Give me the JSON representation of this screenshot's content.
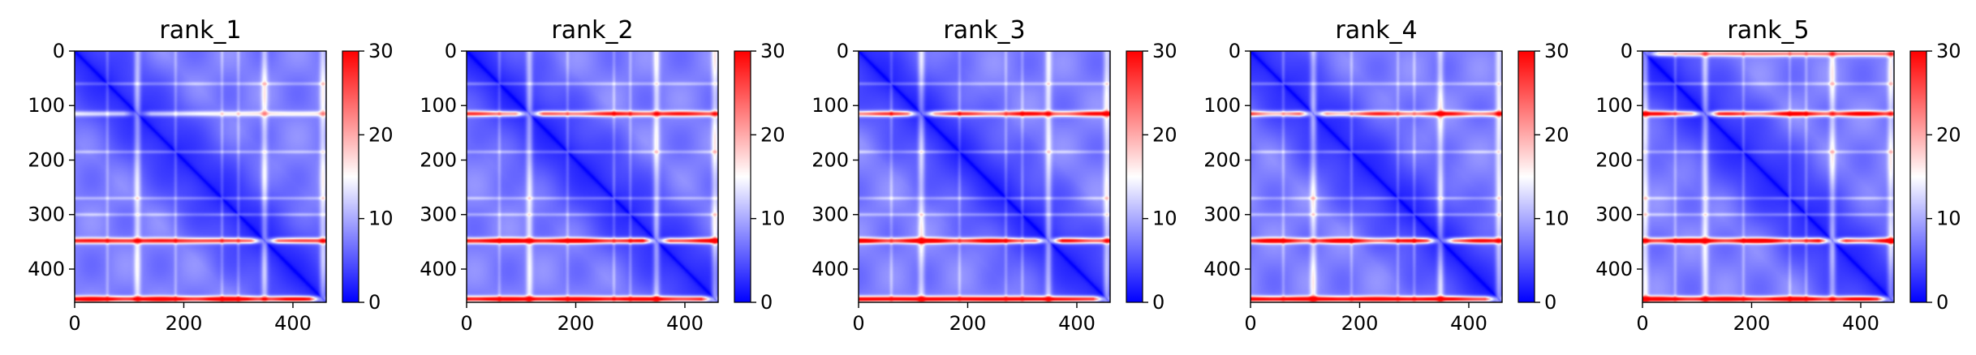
{
  "chart_data": [
    {
      "type": "heatmap",
      "title": "rank_1",
      "xlim": [
        0,
        461
      ],
      "ylim": [
        461,
        0
      ],
      "xticks": [
        "0",
        "200",
        "400"
      ],
      "yticks": [
        "0",
        "100",
        "200",
        "300",
        "400"
      ],
      "colorbar": {
        "colormap": "bwr",
        "range": [
          0,
          30
        ],
        "ticks": [
          "0",
          "10",
          "20",
          "30"
        ]
      },
      "matrix_size": 461,
      "high_error_bands": [
        {
          "position": 115,
          "intensity": 0.35
        },
        {
          "position": 348,
          "intensity": 0.85
        },
        {
          "position": 455,
          "intensity": 1.0
        }
      ]
    },
    {
      "type": "heatmap",
      "title": "rank_2",
      "xlim": [
        0,
        461
      ],
      "ylim": [
        461,
        0
      ],
      "xticks": [
        "0",
        "200",
        "400"
      ],
      "yticks": [
        "0",
        "100",
        "200",
        "300",
        "400"
      ],
      "colorbar": {
        "colormap": "bwr",
        "range": [
          0,
          30
        ],
        "ticks": [
          "0",
          "10",
          "20",
          "30"
        ]
      },
      "matrix_size": 461,
      "high_error_bands": [
        {
          "position": 115,
          "intensity": 0.8
        },
        {
          "position": 348,
          "intensity": 1.0
        },
        {
          "position": 455,
          "intensity": 1.0
        }
      ]
    },
    {
      "type": "heatmap",
      "title": "rank_3",
      "xlim": [
        0,
        461
      ],
      "ylim": [
        461,
        0
      ],
      "xticks": [
        "0",
        "200",
        "400"
      ],
      "yticks": [
        "0",
        "100",
        "200",
        "300",
        "400"
      ],
      "colorbar": {
        "colormap": "bwr",
        "range": [
          0,
          30
        ],
        "ticks": [
          "0",
          "10",
          "20",
          "30"
        ]
      },
      "matrix_size": 461,
      "high_error_bands": [
        {
          "position": 115,
          "intensity": 0.8
        },
        {
          "position": 348,
          "intensity": 0.95
        },
        {
          "position": 455,
          "intensity": 1.0
        }
      ]
    },
    {
      "type": "heatmap",
      "title": "rank_4",
      "xlim": [
        0,
        461
      ],
      "ylim": [
        461,
        0
      ],
      "xticks": [
        "0",
        "200",
        "400"
      ],
      "yticks": [
        "0",
        "100",
        "200",
        "300",
        "400"
      ],
      "colorbar": {
        "colormap": "bwr",
        "range": [
          0,
          30
        ],
        "ticks": [
          "0",
          "10",
          "20",
          "30"
        ]
      },
      "matrix_size": 461,
      "high_error_bands": [
        {
          "position": 115,
          "intensity": 0.75
        },
        {
          "position": 348,
          "intensity": 0.9
        },
        {
          "position": 455,
          "intensity": 1.0
        }
      ]
    },
    {
      "type": "heatmap",
      "title": "rank_5",
      "xlim": [
        0,
        461
      ],
      "ylim": [
        461,
        0
      ],
      "xticks": [
        "0",
        "200",
        "400"
      ],
      "yticks": [
        "0",
        "100",
        "200",
        "300",
        "400"
      ],
      "colorbar": {
        "colormap": "bwr",
        "range": [
          0,
          30
        ],
        "ticks": [
          "0",
          "10",
          "20",
          "30"
        ]
      },
      "matrix_size": 461,
      "high_error_bands": [
        {
          "position": 5,
          "intensity": 0.6
        },
        {
          "position": 115,
          "intensity": 0.85
        },
        {
          "position": 348,
          "intensity": 1.0
        },
        {
          "position": 455,
          "intensity": 1.0
        }
      ]
    }
  ]
}
